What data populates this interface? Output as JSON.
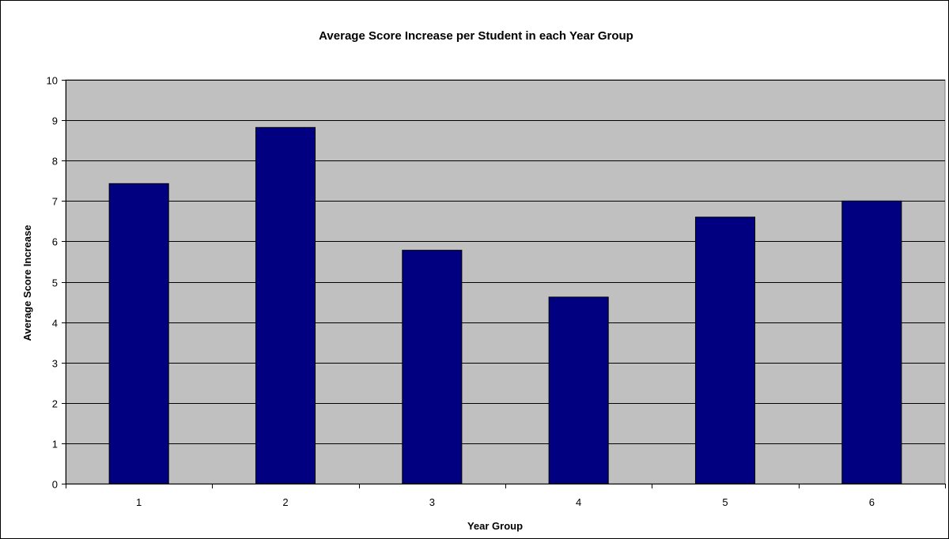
{
  "chart_data": {
    "type": "bar",
    "title": "Average Score Increase per Student in each Year Group",
    "xlabel": "Year Group",
    "ylabel": "Average Score Increase",
    "categories": [
      "1",
      "2",
      "3",
      "4",
      "5",
      "6"
    ],
    "values": [
      7.43,
      8.82,
      5.78,
      4.62,
      6.6,
      7.0
    ],
    "ylim": [
      0,
      10
    ],
    "yticks": [
      "0",
      "1",
      "2",
      "3",
      "4",
      "5",
      "6",
      "7",
      "8",
      "9",
      "10"
    ],
    "grid": true,
    "legend": "none",
    "colors": {
      "bar_fill": "#000080",
      "bar_stroke": "#000000",
      "plot_background": "#c0c0c0",
      "gridline": "#000000"
    }
  }
}
